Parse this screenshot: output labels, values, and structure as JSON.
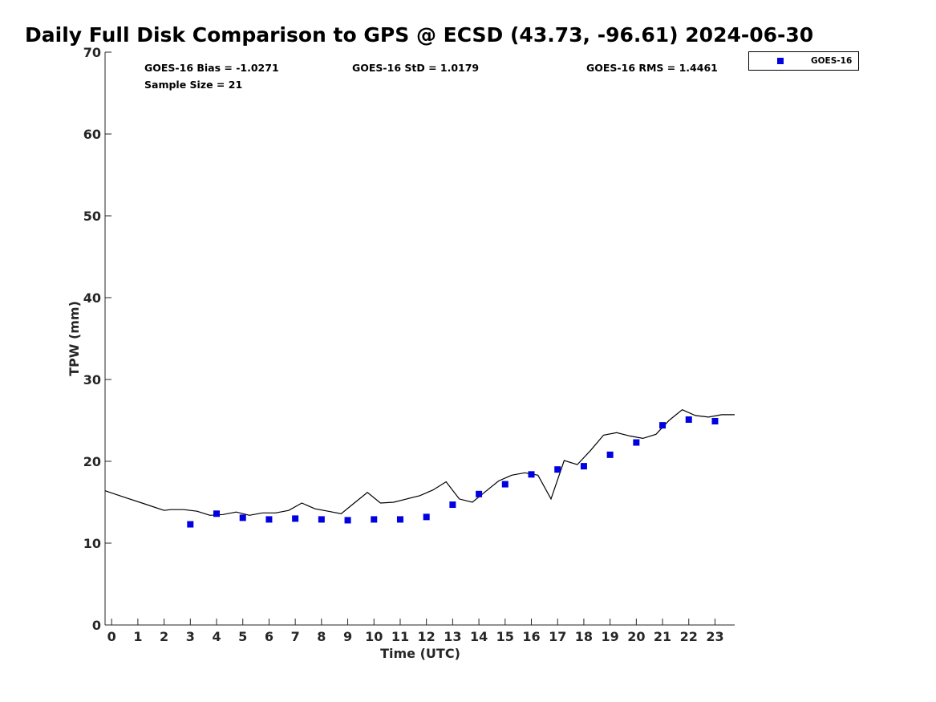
{
  "chart_data": {
    "type": "scatter",
    "title": "Daily Full Disk Comparison to GPS @ ECSD (43.73, -96.61) 2024-06-30",
    "xlabel": "Time (UTC)",
    "ylabel": "TPW (mm)",
    "xlim": [
      -0.25,
      23.75
    ],
    "ylim": [
      0,
      70
    ],
    "xticks": [
      "0",
      "1",
      "2",
      "3",
      "4",
      "5",
      "6",
      "7",
      "8",
      "9",
      "10",
      "11",
      "12",
      "13",
      "14",
      "15",
      "16",
      "17",
      "18",
      "19",
      "20",
      "21",
      "22",
      "23"
    ],
    "yticks": [
      "0",
      "10",
      "20",
      "30",
      "40",
      "50",
      "60",
      "70"
    ],
    "grid": false,
    "legend_position": "top-right",
    "stats": {
      "bias": "GOES-16 Bias = -1.0271",
      "std": "GOES-16 StD = 1.0179",
      "rms": "GOES-16 RMS = 1.4461",
      "sample": "Sample Size = 21"
    },
    "series": [
      {
        "name": "GOES-16",
        "kind": "scatter",
        "color": "#0000e0",
        "points": [
          [
            3,
            12.3
          ],
          [
            4,
            13.6
          ],
          [
            5,
            13.1
          ],
          [
            6,
            12.9
          ],
          [
            7,
            13.0
          ],
          [
            8,
            12.9
          ],
          [
            9,
            12.8
          ],
          [
            10,
            12.9
          ],
          [
            11,
            12.9
          ],
          [
            12,
            13.2
          ],
          [
            13,
            14.7
          ],
          [
            14,
            16.0
          ],
          [
            15,
            17.2
          ],
          [
            16,
            18.4
          ],
          [
            17,
            19.0
          ],
          [
            18,
            19.4
          ],
          [
            19,
            20.8
          ],
          [
            20,
            22.3
          ],
          [
            21,
            24.4
          ],
          [
            22,
            25.1
          ],
          [
            23,
            24.9
          ]
        ]
      },
      {
        "kind": "line",
        "color": "#000000",
        "points": [
          [
            -0.25,
            16.4
          ],
          [
            0.5,
            15.6
          ],
          [
            1.25,
            14.8
          ],
          [
            2.0,
            14.0
          ],
          [
            2.25,
            14.1
          ],
          [
            2.75,
            14.1
          ],
          [
            3.25,
            13.9
          ],
          [
            3.75,
            13.4
          ],
          [
            4.25,
            13.5
          ],
          [
            4.75,
            13.8
          ],
          [
            5.25,
            13.4
          ],
          [
            5.75,
            13.7
          ],
          [
            6.25,
            13.7
          ],
          [
            6.75,
            14.0
          ],
          [
            7.25,
            14.9
          ],
          [
            7.75,
            14.2
          ],
          [
            8.25,
            13.9
          ],
          [
            8.75,
            13.6
          ],
          [
            9.25,
            14.9
          ],
          [
            9.75,
            16.2
          ],
          [
            10.25,
            14.9
          ],
          [
            10.75,
            15.0
          ],
          [
            11.25,
            15.4
          ],
          [
            11.75,
            15.8
          ],
          [
            12.25,
            16.5
          ],
          [
            12.75,
            17.5
          ],
          [
            13.25,
            15.4
          ],
          [
            13.75,
            15.0
          ],
          [
            14.25,
            16.3
          ],
          [
            14.75,
            17.6
          ],
          [
            15.25,
            18.3
          ],
          [
            15.75,
            18.6
          ],
          [
            16.25,
            18.3
          ],
          [
            16.75,
            15.4
          ],
          [
            17.25,
            20.1
          ],
          [
            17.75,
            19.6
          ],
          [
            18.25,
            21.3
          ],
          [
            18.75,
            23.2
          ],
          [
            19.25,
            23.5
          ],
          [
            19.75,
            23.1
          ],
          [
            20.25,
            22.8
          ],
          [
            20.75,
            23.3
          ],
          [
            21.25,
            25.0
          ],
          [
            21.75,
            26.3
          ],
          [
            22.25,
            25.6
          ],
          [
            22.75,
            25.4
          ],
          [
            23.25,
            25.7
          ],
          [
            23.75,
            25.7
          ]
        ]
      }
    ]
  }
}
